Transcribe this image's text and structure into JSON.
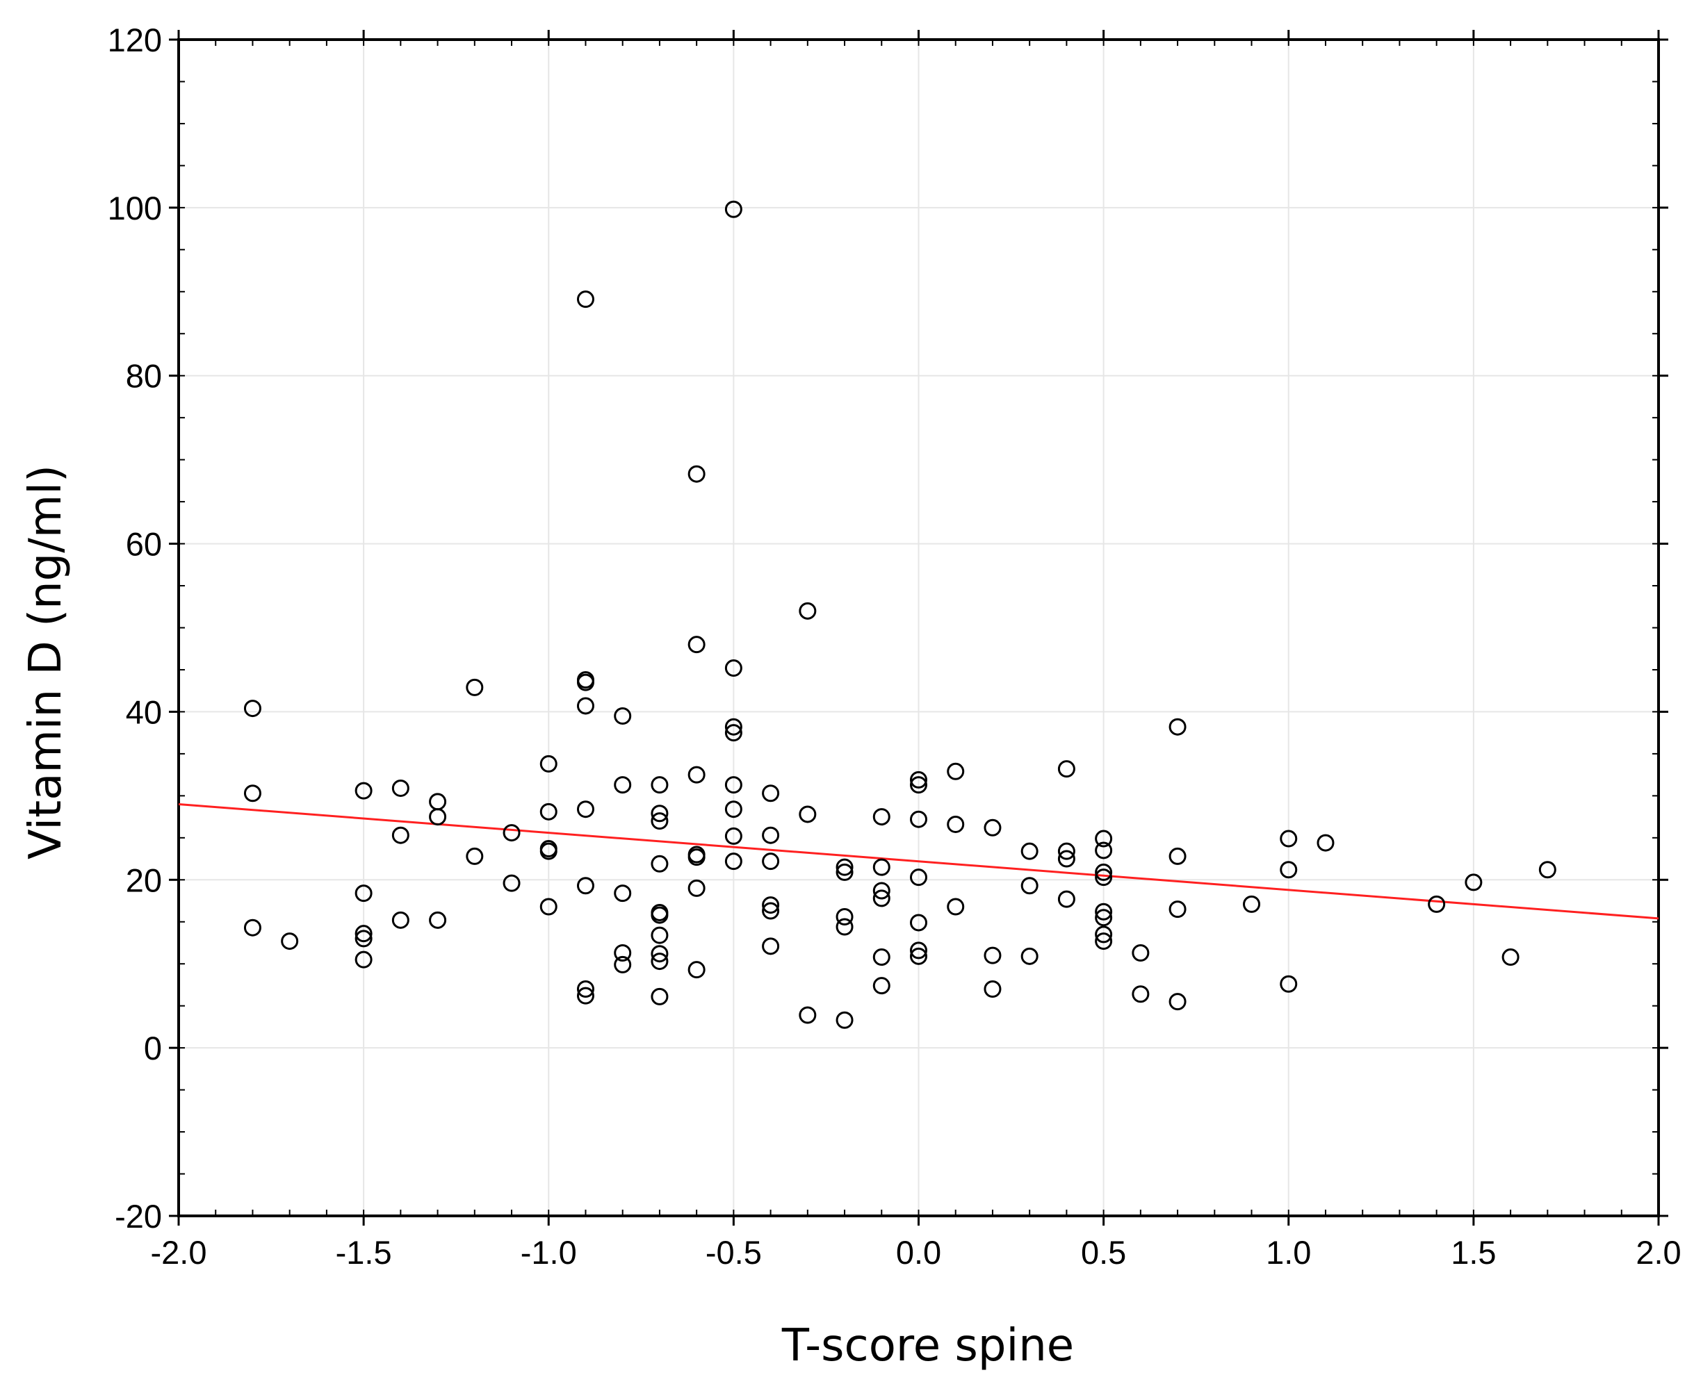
{
  "chart_data": {
    "type": "scatter",
    "title": "",
    "xlabel": "T-score spine",
    "ylabel": "Vitamin D (ng/ml)",
    "xlim": [
      -2.0,
      2.0
    ],
    "ylim": [
      -20,
      120
    ],
    "xticks": [
      -2.0,
      -1.5,
      -1.0,
      -0.5,
      0.0,
      0.5,
      1.0,
      1.5,
      2.0
    ],
    "xtick_labels": [
      "-2.0",
      "-1.5",
      "-1.0",
      "-0.5",
      "0.0",
      "0.5",
      "1.0",
      "1.5",
      "2.0"
    ],
    "yticks": [
      -20,
      0,
      20,
      40,
      60,
      80,
      100,
      120
    ],
    "ytick_labels": [
      "-20",
      "0",
      "20",
      "40",
      "60",
      "80",
      "100",
      "120"
    ],
    "grid": true,
    "marker": "open-circle",
    "marker_color": "#000000",
    "fit_line": {
      "x": [
        -2.0,
        2.0
      ],
      "y": [
        29.0,
        15.4
      ],
      "color": "#ff2020"
    },
    "points": [
      {
        "x": -1.8,
        "y": 40.4
      },
      {
        "x": -1.8,
        "y": 30.3
      },
      {
        "x": -1.8,
        "y": 14.3
      },
      {
        "x": -1.7,
        "y": 12.7
      },
      {
        "x": -1.5,
        "y": 30.6
      },
      {
        "x": -1.5,
        "y": 18.4
      },
      {
        "x": -1.5,
        "y": 13.6
      },
      {
        "x": -1.5,
        "y": 13.0
      },
      {
        "x": -1.5,
        "y": 10.5
      },
      {
        "x": -1.4,
        "y": 30.9
      },
      {
        "x": -1.4,
        "y": 25.3
      },
      {
        "x": -1.4,
        "y": 15.2
      },
      {
        "x": -1.3,
        "y": 29.3
      },
      {
        "x": -1.3,
        "y": 27.5
      },
      {
        "x": -1.3,
        "y": 15.2
      },
      {
        "x": -1.2,
        "y": 42.9
      },
      {
        "x": -1.2,
        "y": 22.8
      },
      {
        "x": -1.1,
        "y": 25.6
      },
      {
        "x": -1.1,
        "y": 19.6
      },
      {
        "x": -1.0,
        "y": 33.8
      },
      {
        "x": -1.0,
        "y": 28.1
      },
      {
        "x": -1.0,
        "y": 23.7
      },
      {
        "x": -1.0,
        "y": 23.4
      },
      {
        "x": -1.0,
        "y": 16.8
      },
      {
        "x": -0.9,
        "y": 89.1
      },
      {
        "x": -0.9,
        "y": 43.8
      },
      {
        "x": -0.9,
        "y": 43.5
      },
      {
        "x": -0.9,
        "y": 40.7
      },
      {
        "x": -0.9,
        "y": 28.4
      },
      {
        "x": -0.9,
        "y": 19.3
      },
      {
        "x": -0.9,
        "y": 7.0
      },
      {
        "x": -0.9,
        "y": 6.2
      },
      {
        "x": -0.8,
        "y": 39.5
      },
      {
        "x": -0.8,
        "y": 31.3
      },
      {
        "x": -0.8,
        "y": 18.4
      },
      {
        "x": -0.8,
        "y": 11.3
      },
      {
        "x": -0.8,
        "y": 9.9
      },
      {
        "x": -0.7,
        "y": 31.3
      },
      {
        "x": -0.7,
        "y": 27.9
      },
      {
        "x": -0.7,
        "y": 27.0
      },
      {
        "x": -0.7,
        "y": 21.9
      },
      {
        "x": -0.7,
        "y": 16.1
      },
      {
        "x": -0.7,
        "y": 15.8
      },
      {
        "x": -0.7,
        "y": 13.4
      },
      {
        "x": -0.7,
        "y": 11.2
      },
      {
        "x": -0.7,
        "y": 10.3
      },
      {
        "x": -0.7,
        "y": 6.1
      },
      {
        "x": -0.6,
        "y": 68.3
      },
      {
        "x": -0.6,
        "y": 48.0
      },
      {
        "x": -0.6,
        "y": 32.5
      },
      {
        "x": -0.6,
        "y": 23.0
      },
      {
        "x": -0.6,
        "y": 22.7
      },
      {
        "x": -0.6,
        "y": 19.0
      },
      {
        "x": -0.6,
        "y": 9.3
      },
      {
        "x": -0.5,
        "y": 99.8
      },
      {
        "x": -0.5,
        "y": 45.2
      },
      {
        "x": -0.5,
        "y": 38.2
      },
      {
        "x": -0.5,
        "y": 37.5
      },
      {
        "x": -0.5,
        "y": 31.3
      },
      {
        "x": -0.5,
        "y": 28.4
      },
      {
        "x": -0.5,
        "y": 25.2
      },
      {
        "x": -0.5,
        "y": 22.2
      },
      {
        "x": -0.4,
        "y": 30.3
      },
      {
        "x": -0.4,
        "y": 25.3
      },
      {
        "x": -0.4,
        "y": 22.2
      },
      {
        "x": -0.4,
        "y": 17.0
      },
      {
        "x": -0.4,
        "y": 16.3
      },
      {
        "x": -0.4,
        "y": 12.1
      },
      {
        "x": -0.3,
        "y": 52.0
      },
      {
        "x": -0.3,
        "y": 27.8
      },
      {
        "x": -0.3,
        "y": 3.9
      },
      {
        "x": -0.2,
        "y": 21.5
      },
      {
        "x": -0.2,
        "y": 20.9
      },
      {
        "x": -0.2,
        "y": 15.6
      },
      {
        "x": -0.2,
        "y": 14.4
      },
      {
        "x": -0.2,
        "y": 3.3
      },
      {
        "x": -0.1,
        "y": 27.5
      },
      {
        "x": -0.1,
        "y": 21.5
      },
      {
        "x": -0.1,
        "y": 18.7
      },
      {
        "x": -0.1,
        "y": 17.8
      },
      {
        "x": -0.1,
        "y": 10.8
      },
      {
        "x": -0.1,
        "y": 7.4
      },
      {
        "x": 0.0,
        "y": 31.9
      },
      {
        "x": 0.0,
        "y": 31.3
      },
      {
        "x": 0.0,
        "y": 27.2
      },
      {
        "x": 0.0,
        "y": 20.3
      },
      {
        "x": 0.0,
        "y": 14.9
      },
      {
        "x": 0.0,
        "y": 11.6
      },
      {
        "x": 0.0,
        "y": 10.9
      },
      {
        "x": 0.1,
        "y": 32.9
      },
      {
        "x": 0.1,
        "y": 26.6
      },
      {
        "x": 0.1,
        "y": 16.8
      },
      {
        "x": 0.2,
        "y": 26.2
      },
      {
        "x": 0.2,
        "y": 11.0
      },
      {
        "x": 0.2,
        "y": 7.0
      },
      {
        "x": 0.3,
        "y": 23.4
      },
      {
        "x": 0.3,
        "y": 19.3
      },
      {
        "x": 0.3,
        "y": 10.9
      },
      {
        "x": 0.4,
        "y": 33.2
      },
      {
        "x": 0.4,
        "y": 23.4
      },
      {
        "x": 0.4,
        "y": 22.5
      },
      {
        "x": 0.4,
        "y": 17.7
      },
      {
        "x": 0.5,
        "y": 24.9
      },
      {
        "x": 0.5,
        "y": 23.5
      },
      {
        "x": 0.5,
        "y": 20.9
      },
      {
        "x": 0.5,
        "y": 20.3
      },
      {
        "x": 0.5,
        "y": 16.2
      },
      {
        "x": 0.5,
        "y": 15.5
      },
      {
        "x": 0.5,
        "y": 13.5
      },
      {
        "x": 0.5,
        "y": 12.7
      },
      {
        "x": 0.6,
        "y": 11.3
      },
      {
        "x": 0.6,
        "y": 6.4
      },
      {
        "x": 0.7,
        "y": 38.2
      },
      {
        "x": 0.7,
        "y": 22.8
      },
      {
        "x": 0.7,
        "y": 16.5
      },
      {
        "x": 0.7,
        "y": 5.5
      },
      {
        "x": 0.9,
        "y": 17.1
      },
      {
        "x": 1.0,
        "y": 24.9
      },
      {
        "x": 1.0,
        "y": 21.2
      },
      {
        "x": 1.0,
        "y": 7.6
      },
      {
        "x": 1.1,
        "y": 24.4
      },
      {
        "x": 1.4,
        "y": 17.1
      },
      {
        "x": 1.5,
        "y": 19.7
      },
      {
        "x": 1.6,
        "y": 10.8
      },
      {
        "x": 1.7,
        "y": 21.2
      }
    ]
  }
}
